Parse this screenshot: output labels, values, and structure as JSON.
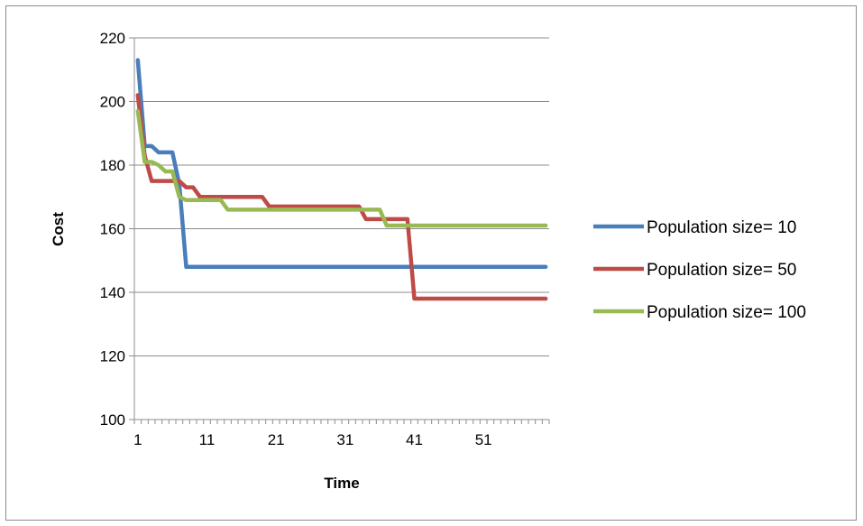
{
  "chart_data": {
    "type": "line",
    "title": "",
    "xlabel": "Time",
    "ylabel": "Cost",
    "ylim": [
      100,
      220
    ],
    "yticks": [
      100,
      120,
      140,
      160,
      180,
      200,
      220
    ],
    "xlim": [
      1,
      60
    ],
    "xtick_labels": [
      1,
      11,
      21,
      31,
      41,
      51
    ],
    "grid": "horizontal",
    "legend": "right",
    "series": [
      {
        "name": "Population size= 10",
        "color": "#4a7ebb",
        "points": [
          [
            1,
            213
          ],
          [
            2,
            186
          ],
          [
            3,
            186
          ],
          [
            4,
            184
          ],
          [
            5,
            184
          ],
          [
            6,
            184
          ],
          [
            7,
            174
          ],
          [
            8,
            148
          ],
          [
            60,
            148
          ]
        ]
      },
      {
        "name": "Population size= 50",
        "color": "#be4b48",
        "points": [
          [
            1,
            202
          ],
          [
            2,
            183
          ],
          [
            3,
            175
          ],
          [
            4,
            175
          ],
          [
            5,
            175
          ],
          [
            6,
            175
          ],
          [
            7,
            175
          ],
          [
            8,
            173
          ],
          [
            9,
            173
          ],
          [
            10,
            170
          ],
          [
            19,
            170
          ],
          [
            20,
            167
          ],
          [
            33,
            167
          ],
          [
            34,
            163
          ],
          [
            40,
            163
          ],
          [
            41,
            138
          ],
          [
            60,
            138
          ]
        ]
      },
      {
        "name": "Population size= 100",
        "color": "#98b954",
        "points": [
          [
            1,
            197
          ],
          [
            2,
            181
          ],
          [
            3,
            181
          ],
          [
            4,
            180
          ],
          [
            5,
            178
          ],
          [
            6,
            178
          ],
          [
            7,
            170
          ],
          [
            8,
            169
          ],
          [
            13,
            169
          ],
          [
            14,
            166
          ],
          [
            36,
            166
          ],
          [
            37,
            161
          ],
          [
            60,
            161
          ]
        ]
      }
    ]
  }
}
